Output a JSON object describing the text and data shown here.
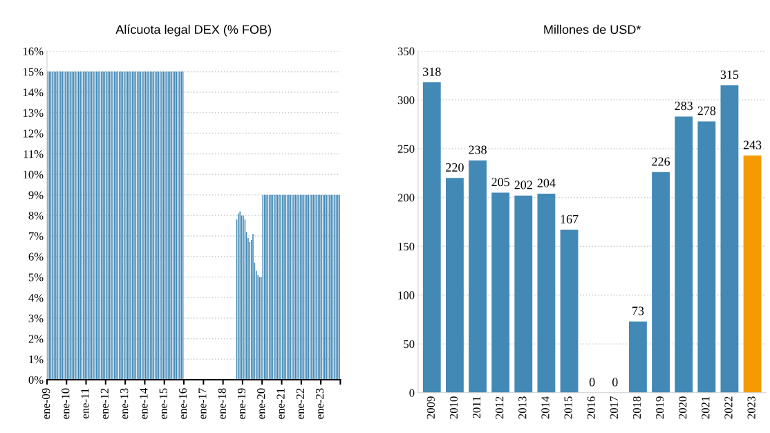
{
  "chart_data": [
    {
      "type": "bar",
      "title": "Alícuota legal DEX (% FOB)",
      "color": "#4389b6",
      "x": [
        "2009-01",
        "2009-02",
        "2009-03",
        "2009-04",
        "2009-05",
        "2009-06",
        "2009-07",
        "2009-08",
        "2009-09",
        "2009-10",
        "2009-11",
        "2009-12",
        "2010-01",
        "2010-02",
        "2010-03",
        "2010-04",
        "2010-05",
        "2010-06",
        "2010-07",
        "2010-08",
        "2010-09",
        "2010-10",
        "2010-11",
        "2010-12",
        "2011-01",
        "2011-02",
        "2011-03",
        "2011-04",
        "2011-05",
        "2011-06",
        "2011-07",
        "2011-08",
        "2011-09",
        "2011-10",
        "2011-11",
        "2011-12",
        "2012-01",
        "2012-02",
        "2012-03",
        "2012-04",
        "2012-05",
        "2012-06",
        "2012-07",
        "2012-08",
        "2012-09",
        "2012-10",
        "2012-11",
        "2012-12",
        "2013-01",
        "2013-02",
        "2013-03",
        "2013-04",
        "2013-05",
        "2013-06",
        "2013-07",
        "2013-08",
        "2013-09",
        "2013-10",
        "2013-11",
        "2013-12",
        "2014-01",
        "2014-02",
        "2014-03",
        "2014-04",
        "2014-05",
        "2014-06",
        "2014-07",
        "2014-08",
        "2014-09",
        "2014-10",
        "2014-11",
        "2014-12",
        "2015-01",
        "2015-02",
        "2015-03",
        "2015-04",
        "2015-05",
        "2015-06",
        "2015-07",
        "2015-08",
        "2015-09",
        "2015-10",
        "2015-11",
        "2015-12",
        "2016-01",
        "2016-02",
        "2016-03",
        "2016-04",
        "2016-05",
        "2016-06",
        "2016-07",
        "2016-08",
        "2016-09",
        "2016-10",
        "2016-11",
        "2016-12",
        "2017-01",
        "2017-02",
        "2017-03",
        "2017-04",
        "2017-05",
        "2017-06",
        "2017-07",
        "2017-08",
        "2017-09",
        "2017-10",
        "2017-11",
        "2017-12",
        "2018-01",
        "2018-02",
        "2018-03",
        "2018-04",
        "2018-05",
        "2018-06",
        "2018-07",
        "2018-08",
        "2018-09",
        "2018-10",
        "2018-11",
        "2018-12",
        "2019-01",
        "2019-02",
        "2019-03",
        "2019-04",
        "2019-05",
        "2019-06",
        "2019-07",
        "2019-08",
        "2019-09",
        "2019-10",
        "2019-11",
        "2019-12",
        "2020-01",
        "2020-02",
        "2020-03",
        "2020-04",
        "2020-05",
        "2020-06",
        "2020-07",
        "2020-08",
        "2020-09",
        "2020-10",
        "2020-11",
        "2020-12",
        "2021-01",
        "2021-02",
        "2021-03",
        "2021-04",
        "2021-05",
        "2021-06",
        "2021-07",
        "2021-08",
        "2021-09",
        "2021-10",
        "2021-11",
        "2021-12",
        "2022-01",
        "2022-02",
        "2022-03",
        "2022-04",
        "2022-05",
        "2022-06",
        "2022-07",
        "2022-08",
        "2022-09",
        "2022-10",
        "2022-11",
        "2022-12",
        "2023-01",
        "2023-02",
        "2023-03",
        "2023-04",
        "2023-05",
        "2023-06",
        "2023-07",
        "2023-08",
        "2023-09",
        "2023-10",
        "2023-11",
        "2023-12"
      ],
      "values": [
        15,
        15,
        15,
        15,
        15,
        15,
        15,
        15,
        15,
        15,
        15,
        15,
        15,
        15,
        15,
        15,
        15,
        15,
        15,
        15,
        15,
        15,
        15,
        15,
        15,
        15,
        15,
        15,
        15,
        15,
        15,
        15,
        15,
        15,
        15,
        15,
        15,
        15,
        15,
        15,
        15,
        15,
        15,
        15,
        15,
        15,
        15,
        15,
        15,
        15,
        15,
        15,
        15,
        15,
        15,
        15,
        15,
        15,
        15,
        15,
        15,
        15,
        15,
        15,
        15,
        15,
        15,
        15,
        15,
        15,
        15,
        15,
        15,
        15,
        15,
        15,
        15,
        15,
        15,
        15,
        15,
        15,
        15,
        15,
        0,
        0,
        0,
        0,
        0,
        0,
        0,
        0,
        0,
        0,
        0,
        0,
        0,
        0,
        0,
        0,
        0,
        0,
        0,
        0,
        0,
        0,
        0,
        0,
        0,
        0,
        0,
        0,
        0,
        0,
        0,
        0,
        7.8,
        8.1,
        8.2,
        8.0,
        8.0,
        7.8,
        7.2,
        6.9,
        6.7,
        6.8,
        7.1,
        5.7,
        5.3,
        5.1,
        5.0,
        5.0,
        9,
        9,
        9,
        9,
        9,
        9,
        9,
        9,
        9,
        9,
        9,
        9,
        9,
        9,
        9,
        9,
        9,
        9,
        9,
        9,
        9,
        9,
        9,
        9,
        9,
        9,
        9,
        9,
        9,
        9,
        9,
        9,
        9,
        9,
        9,
        9,
        9,
        9,
        9,
        9,
        9,
        9,
        9,
        9,
        9,
        9,
        9,
        9
      ],
      "xlim": [
        "2009-01",
        "2024-01"
      ],
      "xticks": [
        {
          "value": "2009-01",
          "label": "ene-09"
        },
        {
          "value": "2010-01",
          "label": "ene-10"
        },
        {
          "value": "2011-01",
          "label": "ene-11"
        },
        {
          "value": "2012-01",
          "label": "ene-12"
        },
        {
          "value": "2013-01",
          "label": "ene-13"
        },
        {
          "value": "2014-01",
          "label": "ene-14"
        },
        {
          "value": "2015-01",
          "label": "ene-15"
        },
        {
          "value": "2016-01",
          "label": "ene-16"
        },
        {
          "value": "2017-01",
          "label": "ene-17"
        },
        {
          "value": "2018-01",
          "label": "ene-18"
        },
        {
          "value": "2019-01",
          "label": "ene-19"
        },
        {
          "value": "2020-01",
          "label": "ene-20"
        },
        {
          "value": "2021-01",
          "label": "ene-21"
        },
        {
          "value": "2022-01",
          "label": "ene-22"
        },
        {
          "value": "2023-01",
          "label": "ene-23"
        },
        {
          "value": "2024-01",
          "label": null
        }
      ],
      "ylim": [
        0,
        16
      ],
      "yticks": [
        {
          "value": 0,
          "label": "0%"
        },
        {
          "value": 1,
          "label": "1%"
        },
        {
          "value": 2,
          "label": "2%"
        },
        {
          "value": 3,
          "label": "3%"
        },
        {
          "value": 4,
          "label": "4%"
        },
        {
          "value": 5,
          "label": "5%"
        },
        {
          "value": 6,
          "label": "6%"
        },
        {
          "value": 7,
          "label": "7%"
        },
        {
          "value": 8,
          "label": "8%"
        },
        {
          "value": 9,
          "label": "9%"
        },
        {
          "value": 10,
          "label": "10%"
        },
        {
          "value": 11,
          "label": "11%"
        },
        {
          "value": 12,
          "label": "12%"
        },
        {
          "value": 13,
          "label": "13%"
        },
        {
          "value": 14,
          "label": "14%"
        },
        {
          "value": 15,
          "label": "15%"
        },
        {
          "value": 16,
          "label": "16%"
        }
      ],
      "grid": "y",
      "legend": false
    },
    {
      "type": "bar",
      "title": "Millones de USD*",
      "categories": [
        "2009",
        "2010",
        "2011",
        "2012",
        "2013",
        "2014",
        "2015",
        "2016",
        "2017",
        "2018",
        "2019",
        "2020",
        "2021",
        "2022",
        "2023"
      ],
      "values": [
        318,
        220,
        238,
        205,
        202,
        204,
        167,
        0,
        0,
        73,
        226,
        283,
        278,
        315,
        243
      ],
      "colors": [
        "#4389b6",
        "#4389b6",
        "#4389b6",
        "#4389b6",
        "#4389b6",
        "#4389b6",
        "#4389b6",
        "#4389b6",
        "#4389b6",
        "#4389b6",
        "#4389b6",
        "#4389b6",
        "#4389b6",
        "#4389b6",
        "#f59b00"
      ],
      "ylim": [
        0,
        350
      ],
      "yticks": [
        0,
        50,
        100,
        150,
        200,
        250,
        300,
        350
      ],
      "data_labels": true,
      "grid": "y",
      "legend": false
    }
  ]
}
